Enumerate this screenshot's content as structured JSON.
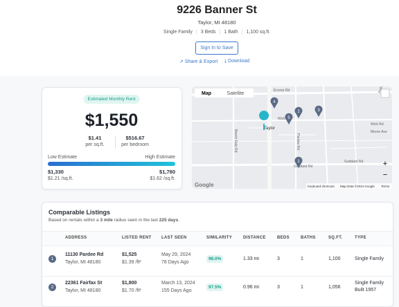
{
  "header": {
    "title": "9226 Banner St",
    "address": "Taylor, MI 48180",
    "facts": [
      "Single Family",
      "3 Beds",
      "1 Bath",
      "1,100 sq.ft."
    ],
    "sign_in": "Sign In to Save",
    "share": "Share & Export",
    "download": "Download"
  },
  "rent_card": {
    "badge": "Estimated Monthly Rent",
    "rent": "$1,550",
    "per_sqft": "$1.41",
    "per_sqft_label": "per sq.ft.",
    "per_bedroom": "$516.67",
    "per_bedroom_label": "per bedroom",
    "low_label": "Low Estimate",
    "high_label": "High Estimate",
    "low": "$1,330",
    "low_sqft": "$1.21 /sq.ft.",
    "high": "$1,780",
    "high_sqft": "$1.62 /sq.ft."
  },
  "map": {
    "tabs": [
      "Map",
      "Satellite"
    ],
    "streets": [
      "Ecorse Rd",
      "Wick Rd",
      "Wick Rd",
      "Moore Ave",
      "Goddard Rd",
      "Goddard Rd",
      "Pardee Rd",
      "Beech Daly Rd",
      "Pelham Rd",
      "Taylor"
    ],
    "markers": [
      "4",
      "5",
      "2",
      "3",
      "1"
    ],
    "google": "Google",
    "shortcuts": "Keyboard shortcuts",
    "map_data": "Map Data ©2024 Google",
    "terms": "Terms",
    "zoom_in": "+",
    "zoom_out": "−"
  },
  "comparables": {
    "title": "Comparable Listings",
    "subtitle": [
      "Based on rentals within a ",
      "3 mile",
      " radius seen in the last ",
      "225 days",
      "."
    ],
    "columns": [
      "ADDRESS",
      "LISTED RENT",
      "LAST SEEN",
      "SIMILARITY",
      "DISTANCE",
      "BEDS",
      "BATHS",
      "SQ.FT.",
      "TYPE"
    ],
    "rows": [
      {
        "index": "1",
        "address": "11130 Pardee Rd",
        "city": "Taylor, MI 48180",
        "rent": "$1,525",
        "rent_sqft": "$1.39 /ft²",
        "last_seen": "May 29, 2024",
        "ago": "78 Days Ago",
        "similarity": "98.0%",
        "distance": "1.33 mi",
        "beds": "3",
        "baths": "1",
        "sqft": "1,100",
        "type": [
          "Single Family"
        ]
      },
      {
        "index": "2",
        "address": "22361 Fairfax St",
        "city": "Taylor, MI 48180",
        "rent": "$1,800",
        "rent_sqft": "$1.70 /ft²",
        "last_seen": "March 13, 2024",
        "ago": "155 Days Ago",
        "similarity": "97.5%",
        "distance": "0.96 mi",
        "beds": "3",
        "baths": "1",
        "sqft": "1,056",
        "type": [
          "Single Family",
          "Built 1957"
        ]
      }
    ]
  }
}
